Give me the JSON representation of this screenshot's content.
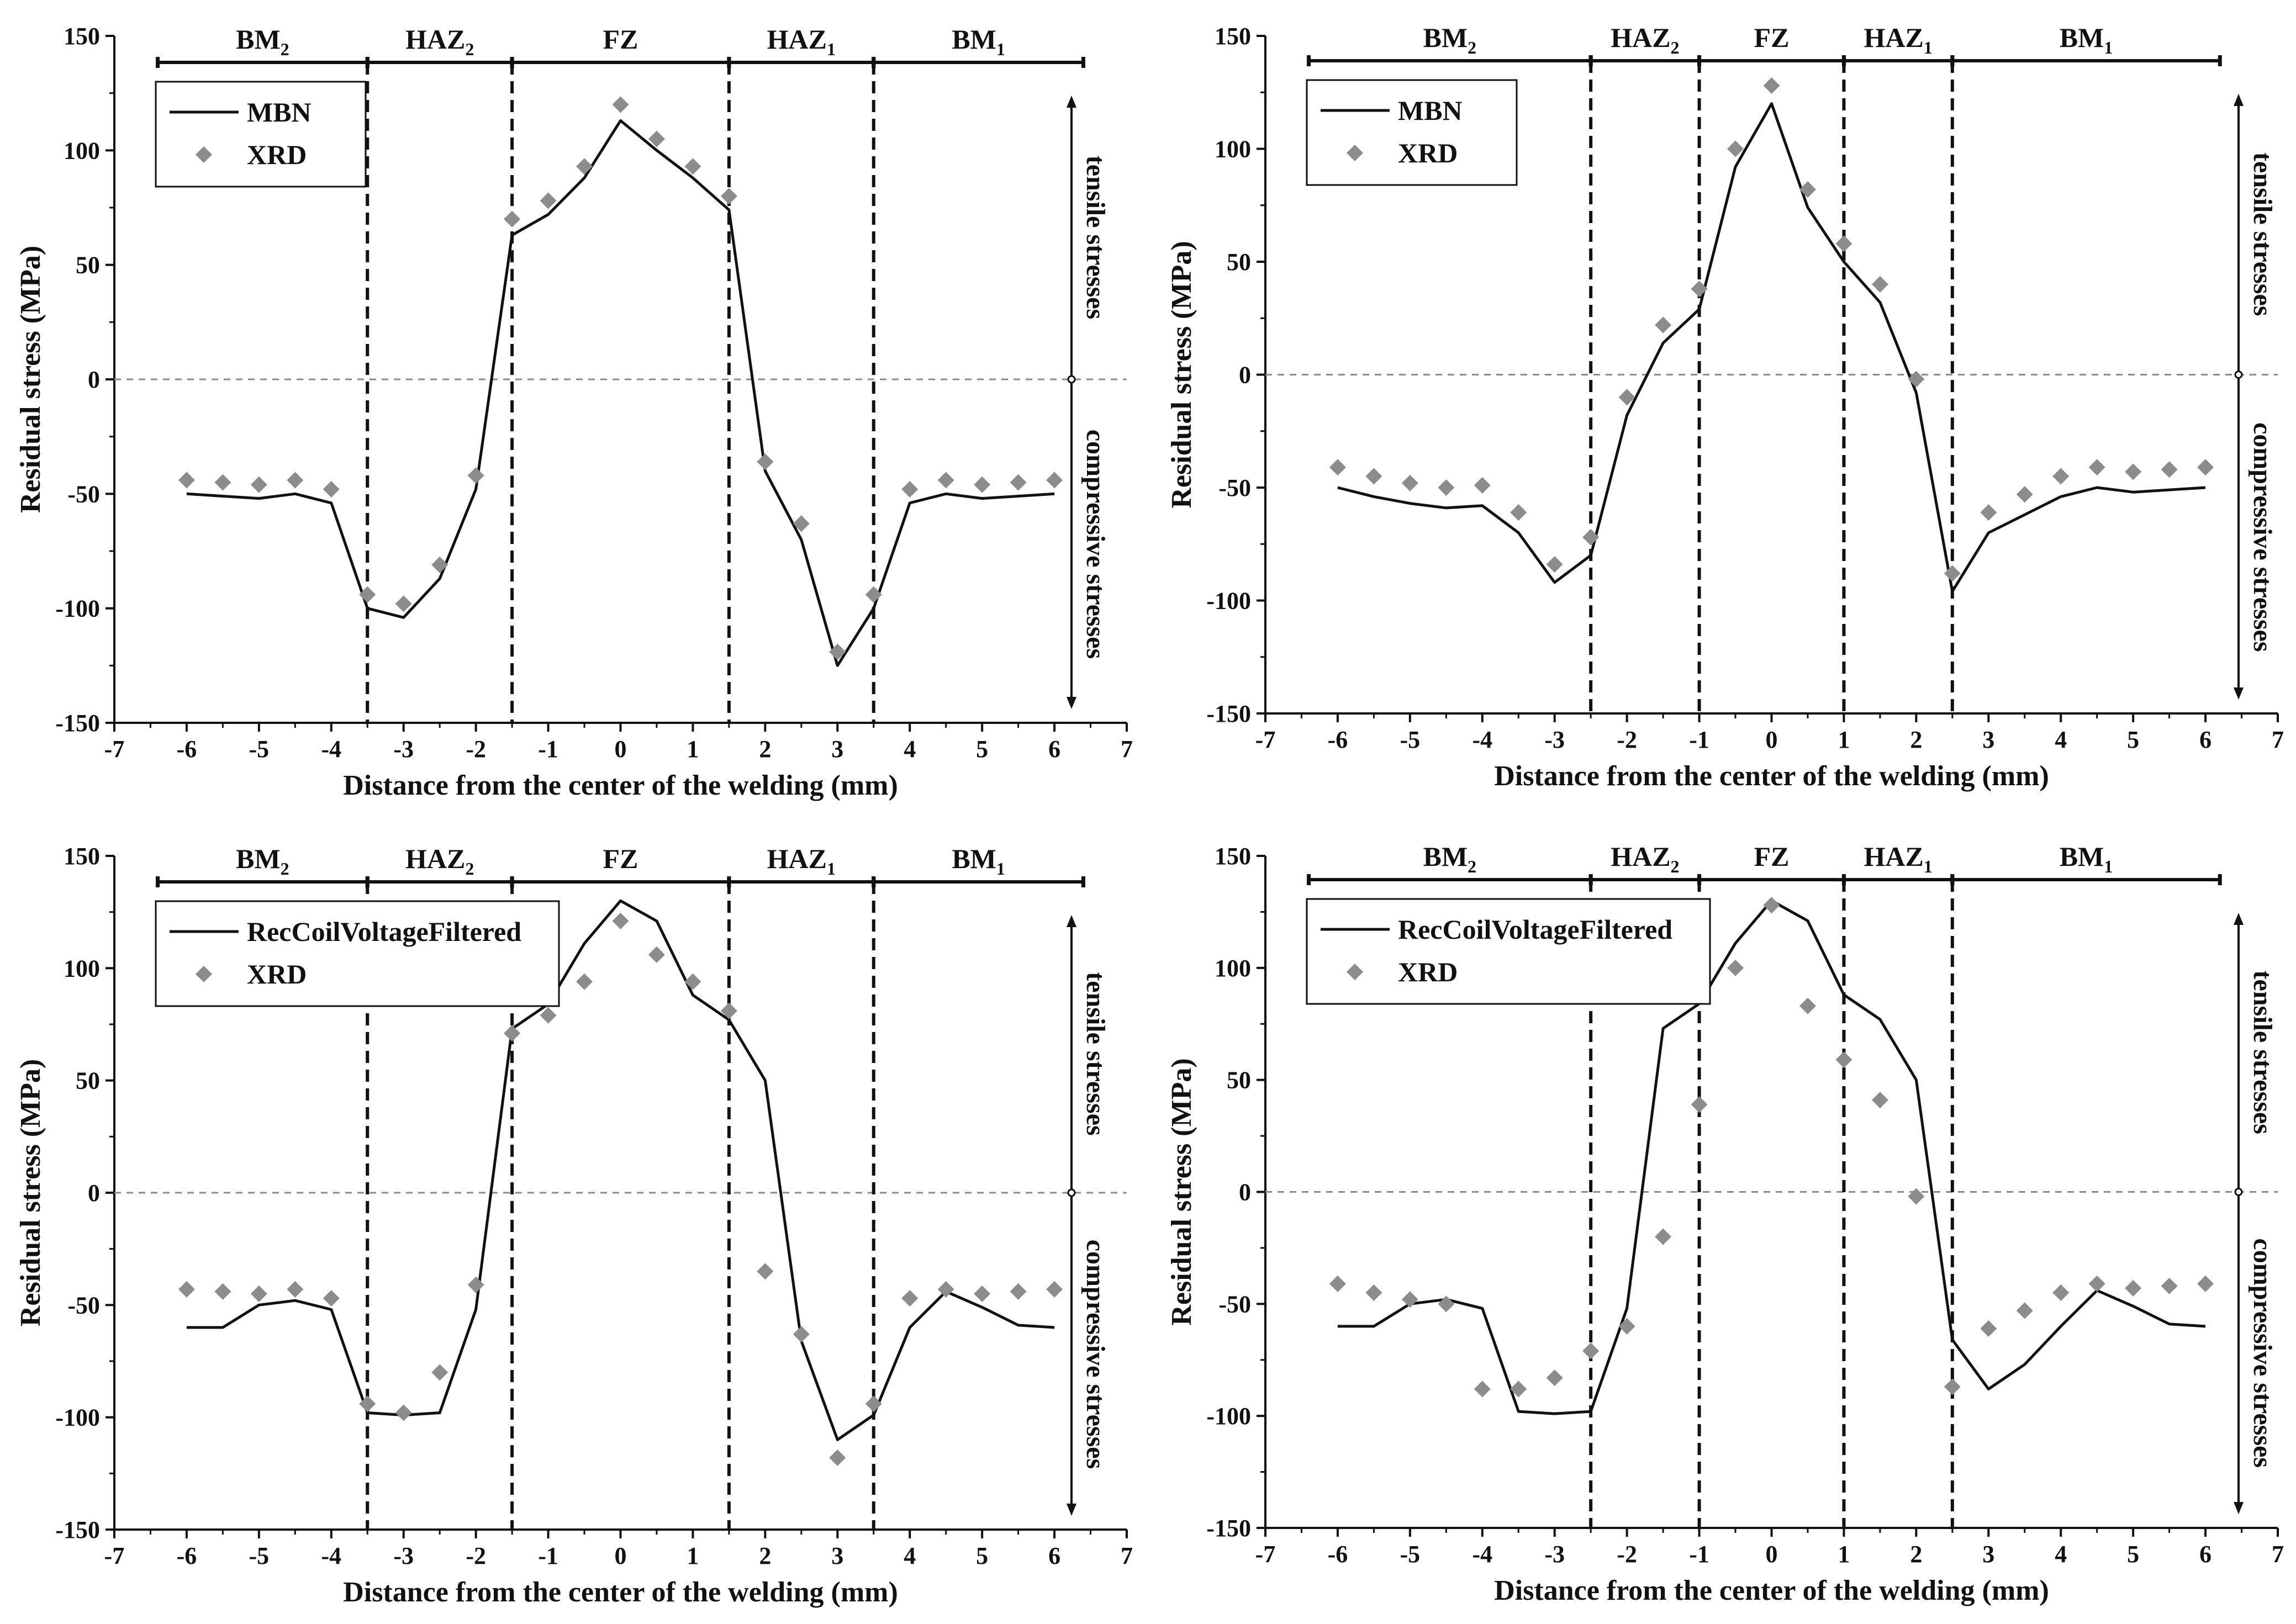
{
  "chart_data": [
    {
      "type": "line+scatter",
      "title": "",
      "xlabel": "Distance from the center of the welding (mm)",
      "ylabel": "Residual stress (MPa)",
      "xlim": [
        -7,
        7
      ],
      "ylim": [
        -150,
        150
      ],
      "xticks": [
        "-7",
        "-6",
        "-5",
        "-4",
        "-3",
        "-2",
        "-1",
        "0",
        "1",
        "2",
        "3",
        "4",
        "5",
        "6",
        "7"
      ],
      "yticks": [
        "-150",
        "-100",
        "-50",
        "0",
        "50",
        "100",
        "150"
      ],
      "legend": [
        "MBN",
        "XRD"
      ],
      "zones": [
        {
          "name": "BM",
          "sub": "2",
          "from": -6.4,
          "to": -3.5
        },
        {
          "name": "HAZ",
          "sub": "2",
          "from": -3.5,
          "to": -1.5
        },
        {
          "name": "FZ",
          "sub": "",
          "from": -1.5,
          "to": 1.5
        },
        {
          "name": "HAZ",
          "sub": "1",
          "from": 1.5,
          "to": 3.5
        },
        {
          "name": "BM",
          "sub": "1",
          "from": 3.5,
          "to": 6.4
        }
      ],
      "boundaries": [
        -3.5,
        -1.5,
        1.5,
        3.5
      ],
      "side_labels": {
        "tensile": "tensile stresses",
        "compressive": "compressive stresses"
      },
      "series": [
        {
          "name": "MBN",
          "style": "line",
          "x": [
            -6,
            -5.5,
            -5,
            -4.5,
            -4,
            -3.5,
            -3,
            -2.5,
            -2,
            -1.5,
            -1,
            -0.5,
            0,
            0.5,
            1,
            1.5,
            2,
            2.5,
            3,
            3.5,
            4,
            4.5,
            5,
            5.5,
            6
          ],
          "y": [
            -50,
            -51,
            -52,
            -50,
            -54,
            -100,
            -104,
            -87,
            -48,
            63,
            72,
            88,
            113,
            100,
            88,
            74,
            -40,
            -70,
            -125,
            -100,
            -54,
            -50,
            -52,
            -51,
            -50
          ]
        },
        {
          "name": "XRD",
          "style": "marker",
          "x": [
            -6,
            -5.5,
            -5,
            -4.5,
            -4,
            -3.5,
            -3,
            -2.5,
            -2,
            -1.5,
            -1,
            -0.5,
            0,
            0.5,
            1,
            1.5,
            2,
            2.5,
            3,
            3.5,
            4,
            4.5,
            5,
            5.5,
            6
          ],
          "y": [
            -44,
            -45,
            -46,
            -44,
            -48,
            -94,
            -98,
            -81,
            -42,
            70,
            78,
            93,
            120,
            105,
            93,
            80,
            -36,
            -63,
            -119,
            -94,
            -48,
            -44,
            -46,
            -45,
            -44
          ]
        }
      ]
    },
    {
      "type": "line+scatter",
      "title": "",
      "xlabel": "Distance from the center of the welding (mm)",
      "ylabel": "Residual stress (MPa)",
      "xlim": [
        -7,
        7
      ],
      "ylim": [
        -150,
        150
      ],
      "xticks": [
        "-7",
        "-6",
        "-5",
        "-4",
        "-3",
        "-2",
        "-1",
        "0",
        "1",
        "2",
        "3",
        "4",
        "5",
        "6",
        "7"
      ],
      "yticks": [
        "-150",
        "-100",
        "-50",
        "0",
        "50",
        "100",
        "150"
      ],
      "legend": [
        "MBN",
        "XRD"
      ],
      "zones": [
        {
          "name": "BM",
          "sub": "2",
          "from": -6.4,
          "to": -2.5
        },
        {
          "name": "HAZ",
          "sub": "2",
          "from": -2.5,
          "to": -1
        },
        {
          "name": "FZ",
          "sub": "",
          "from": -1,
          "to": 1
        },
        {
          "name": "HAZ",
          "sub": "1",
          "from": 1,
          "to": 2.5
        },
        {
          "name": "BM",
          "sub": "1",
          "from": 2.5,
          "to": 6.2
        }
      ],
      "boundaries": [
        -2.5,
        -1,
        1,
        2.5
      ],
      "side_labels": {
        "tensile": "tensile stresses",
        "compressive": "compressive stresses"
      },
      "series": [
        {
          "name": "MBN",
          "style": "line",
          "x": [
            -6,
            -5.5,
            -5,
            -4.5,
            -4,
            -3.5,
            -3,
            -2.5,
            -2,
            -1.5,
            -1,
            -0.5,
            0,
            0.5,
            1,
            1.5,
            2,
            2.5,
            3,
            3.5,
            4,
            4.5,
            5,
            5.5,
            6
          ],
          "y": [
            -50,
            -54,
            -57,
            -59,
            -58,
            -70,
            -92,
            -80,
            -18,
            14,
            29,
            92,
            120,
            74,
            50,
            32,
            -8,
            -96,
            -70,
            -62,
            -54,
            -50,
            -52,
            -51,
            -50
          ]
        },
        {
          "name": "XRD",
          "style": "marker",
          "x": [
            -6,
            -5.5,
            -5,
            -4.5,
            -4,
            -3.5,
            -3,
            -2.5,
            -2,
            -1.5,
            -1,
            -0.5,
            0,
            0.5,
            1,
            1.5,
            2,
            2.5,
            3,
            3.5,
            4,
            4.5,
            5,
            5.5,
            6
          ],
          "y": [
            -41,
            -45,
            -48,
            -50,
            -49,
            -61,
            -84,
            -72,
            -10,
            22,
            38,
            100,
            128,
            82,
            58,
            40,
            -2,
            -88,
            -61,
            -53,
            -45,
            -41,
            -43,
            -42,
            -41
          ]
        }
      ]
    },
    {
      "type": "line+scatter",
      "title": "",
      "xlabel": "Distance from the center of the welding (mm)",
      "ylabel": "Residual stress (MPa)",
      "xlim": [
        -7,
        7
      ],
      "ylim": [
        -150,
        150
      ],
      "xticks": [
        "-7",
        "-6",
        "-5",
        "-4",
        "-3",
        "-2",
        "-1",
        "0",
        "1",
        "2",
        "3",
        "4",
        "5",
        "6",
        "7"
      ],
      "yticks": [
        "-150",
        "-100",
        "-50",
        "0",
        "50",
        "100",
        "150"
      ],
      "legend": [
        "RecCoilVoltageFiltered",
        "XRD"
      ],
      "zones": [
        {
          "name": "BM",
          "sub": "2",
          "from": -6.4,
          "to": -3.5
        },
        {
          "name": "HAZ",
          "sub": "2",
          "from": -3.5,
          "to": -1.5
        },
        {
          "name": "FZ",
          "sub": "",
          "from": -1.5,
          "to": 1.5
        },
        {
          "name": "HAZ",
          "sub": "1",
          "from": 1.5,
          "to": 3.5
        },
        {
          "name": "BM",
          "sub": "1",
          "from": 3.5,
          "to": 6.4
        }
      ],
      "boundaries": [
        -3.5,
        -1.5,
        1.5,
        3.5
      ],
      "side_labels": {
        "tensile": "tensile stresses",
        "compressive": "compressive stresses"
      },
      "series": [
        {
          "name": "RecCoilVoltageFiltered",
          "style": "line",
          "x": [
            -6,
            -5.5,
            -5,
            -4.5,
            -4,
            -3.5,
            -3,
            -2.5,
            -2,
            -1.5,
            -1,
            -0.5,
            0,
            0.5,
            1,
            1.5,
            2,
            2.5,
            3,
            3.5,
            4,
            4.5,
            5,
            5.5,
            6
          ],
          "y": [
            -60,
            -60,
            -50,
            -48,
            -52,
            -98,
            -99,
            -98,
            -52,
            73,
            84,
            111,
            130,
            121,
            88,
            77,
            50,
            -66,
            -110,
            -99,
            -60,
            -44,
            -51,
            -59,
            -60
          ]
        },
        {
          "name": "XRD",
          "style": "marker",
          "x": [
            -6,
            -5.5,
            -5,
            -4.5,
            -4,
            -3.5,
            -3,
            -2.5,
            -2,
            -1.5,
            -1,
            -0.5,
            0,
            0.5,
            1,
            1.5,
            2,
            2.5,
            3,
            3.5,
            4,
            4.5,
            5,
            5.5,
            6
          ],
          "y": [
            -43,
            -44,
            -45,
            -43,
            -47,
            -94,
            -98,
            -80,
            -41,
            71,
            79,
            94,
            121,
            106,
            94,
            81,
            -35,
            -63,
            -118,
            -94,
            -47,
            -43,
            -45,
            -44,
            -43
          ]
        }
      ]
    },
    {
      "type": "line+scatter",
      "title": "",
      "xlabel": "Distance from the center of the welding (mm)",
      "ylabel": "Residual stress (MPa)",
      "xlim": [
        -7,
        7
      ],
      "ylim": [
        -150,
        150
      ],
      "xticks": [
        "-7",
        "-6",
        "-5",
        "-4",
        "-3",
        "-2",
        "-1",
        "0",
        "1",
        "2",
        "3",
        "4",
        "5",
        "6",
        "7"
      ],
      "yticks": [
        "-150",
        "-100",
        "-50",
        "0",
        "50",
        "100",
        "150"
      ],
      "legend": [
        "RecCoilVoltageFiltered",
        "XRD"
      ],
      "zones": [
        {
          "name": "BM",
          "sub": "2",
          "from": -6.4,
          "to": -2.5
        },
        {
          "name": "HAZ",
          "sub": "2",
          "from": -2.5,
          "to": -1
        },
        {
          "name": "FZ",
          "sub": "",
          "from": -1,
          "to": 1
        },
        {
          "name": "HAZ",
          "sub": "1",
          "from": 1,
          "to": 2.5
        },
        {
          "name": "BM",
          "sub": "1",
          "from": 2.5,
          "to": 6.2
        }
      ],
      "boundaries": [
        -2.5,
        -1,
        1,
        2.5
      ],
      "side_labels": {
        "tensile": "tensile stresses",
        "compressive": "compressive stresses"
      },
      "series": [
        {
          "name": "RecCoilVoltageFiltered",
          "style": "line",
          "x": [
            -6,
            -5.5,
            -5,
            -4.5,
            -4,
            -3.5,
            -3,
            -2.5,
            -2,
            -1.5,
            -1,
            -0.5,
            0,
            0.5,
            1,
            1.5,
            2,
            2.5,
            3,
            3.5,
            4,
            4.5,
            5,
            5.5,
            6
          ],
          "y": [
            -60,
            -60,
            -50,
            -48,
            -52,
            -98,
            -99,
            -98,
            -52,
            73,
            84,
            111,
            130,
            121,
            88,
            77,
            50,
            -66,
            -88,
            -77,
            -60,
            -44,
            -51,
            -59,
            -60
          ]
        },
        {
          "name": "XRD",
          "style": "marker",
          "x": [
            -6,
            -5.5,
            -5,
            -4.5,
            -4,
            -3.5,
            -3,
            -2.5,
            -2,
            -1.5,
            -1,
            -0.5,
            0,
            0.5,
            1,
            1.5,
            2,
            2.5,
            3,
            3.5,
            4,
            4.5,
            5,
            5.5,
            6
          ],
          "y": [
            -41,
            -45,
            -48,
            -50,
            -88,
            -88,
            -83,
            -71,
            -60,
            -20,
            39,
            100,
            128,
            83,
            59,
            41,
            -2,
            -87,
            -61,
            -53,
            -45,
            -41,
            -43,
            -42,
            -41
          ]
        }
      ]
    }
  ]
}
